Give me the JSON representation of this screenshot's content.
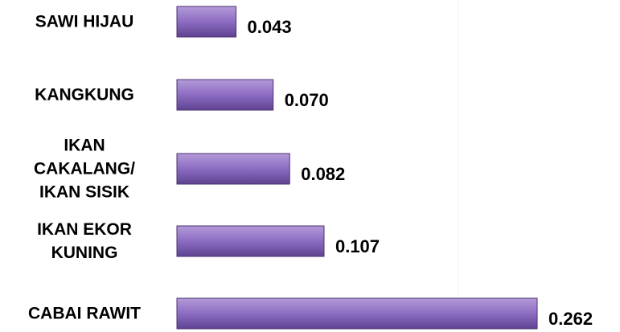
{
  "chart_data": {
    "type": "barh",
    "categories": [
      "SAWI HIJAU",
      "KANGKUNG",
      "IKAN CAKALANG/ IKAN SISIK",
      "IKAN EKOR KUNING",
      "CABAI RAWIT"
    ],
    "values": [
      0.043,
      0.07,
      0.082,
      0.107,
      0.262
    ],
    "value_labels": [
      "0.043",
      "0.070",
      "0.082",
      "0.107",
      "0.262"
    ],
    "color": "#8c6cc2",
    "xlim": [
      0,
      0.3
    ]
  }
}
